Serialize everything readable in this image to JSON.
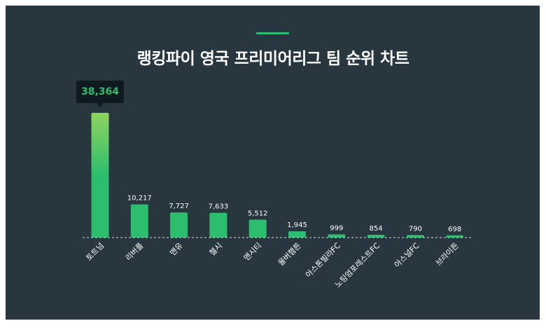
{
  "title": "랭킹파이 영국 프리미어리그 팀 순위 차트",
  "colors": {
    "panel": "#283640",
    "accent": "#2dbd6e",
    "bar": "#2dbd6e",
    "bar_top_highlight": "#8fd45f",
    "text": "#ffffff",
    "tooltip_bg": "#0f1a20"
  },
  "tooltip": {
    "label": "38,364"
  },
  "chart_data": {
    "type": "bar",
    "title": "랭킹파이 영국 프리미어리그 팀 순위 차트",
    "categories": [
      "토트넘",
      "리버풀",
      "맨유",
      "첼시",
      "맨시티",
      "울버햄튼",
      "아스톤빌라FC",
      "노팅엄포레스트FC",
      "아스널FC",
      "브라이튼"
    ],
    "values": [
      38364,
      10217,
      7727,
      7633,
      5512,
      1945,
      999,
      854,
      790,
      698
    ],
    "labels": [
      "",
      "10,217",
      "7,727",
      "7,633",
      "5,512",
      "1,945",
      "999",
      "854",
      "790",
      "698"
    ],
    "xlabel": "",
    "ylabel": "",
    "grid": false,
    "legend": "none"
  }
}
